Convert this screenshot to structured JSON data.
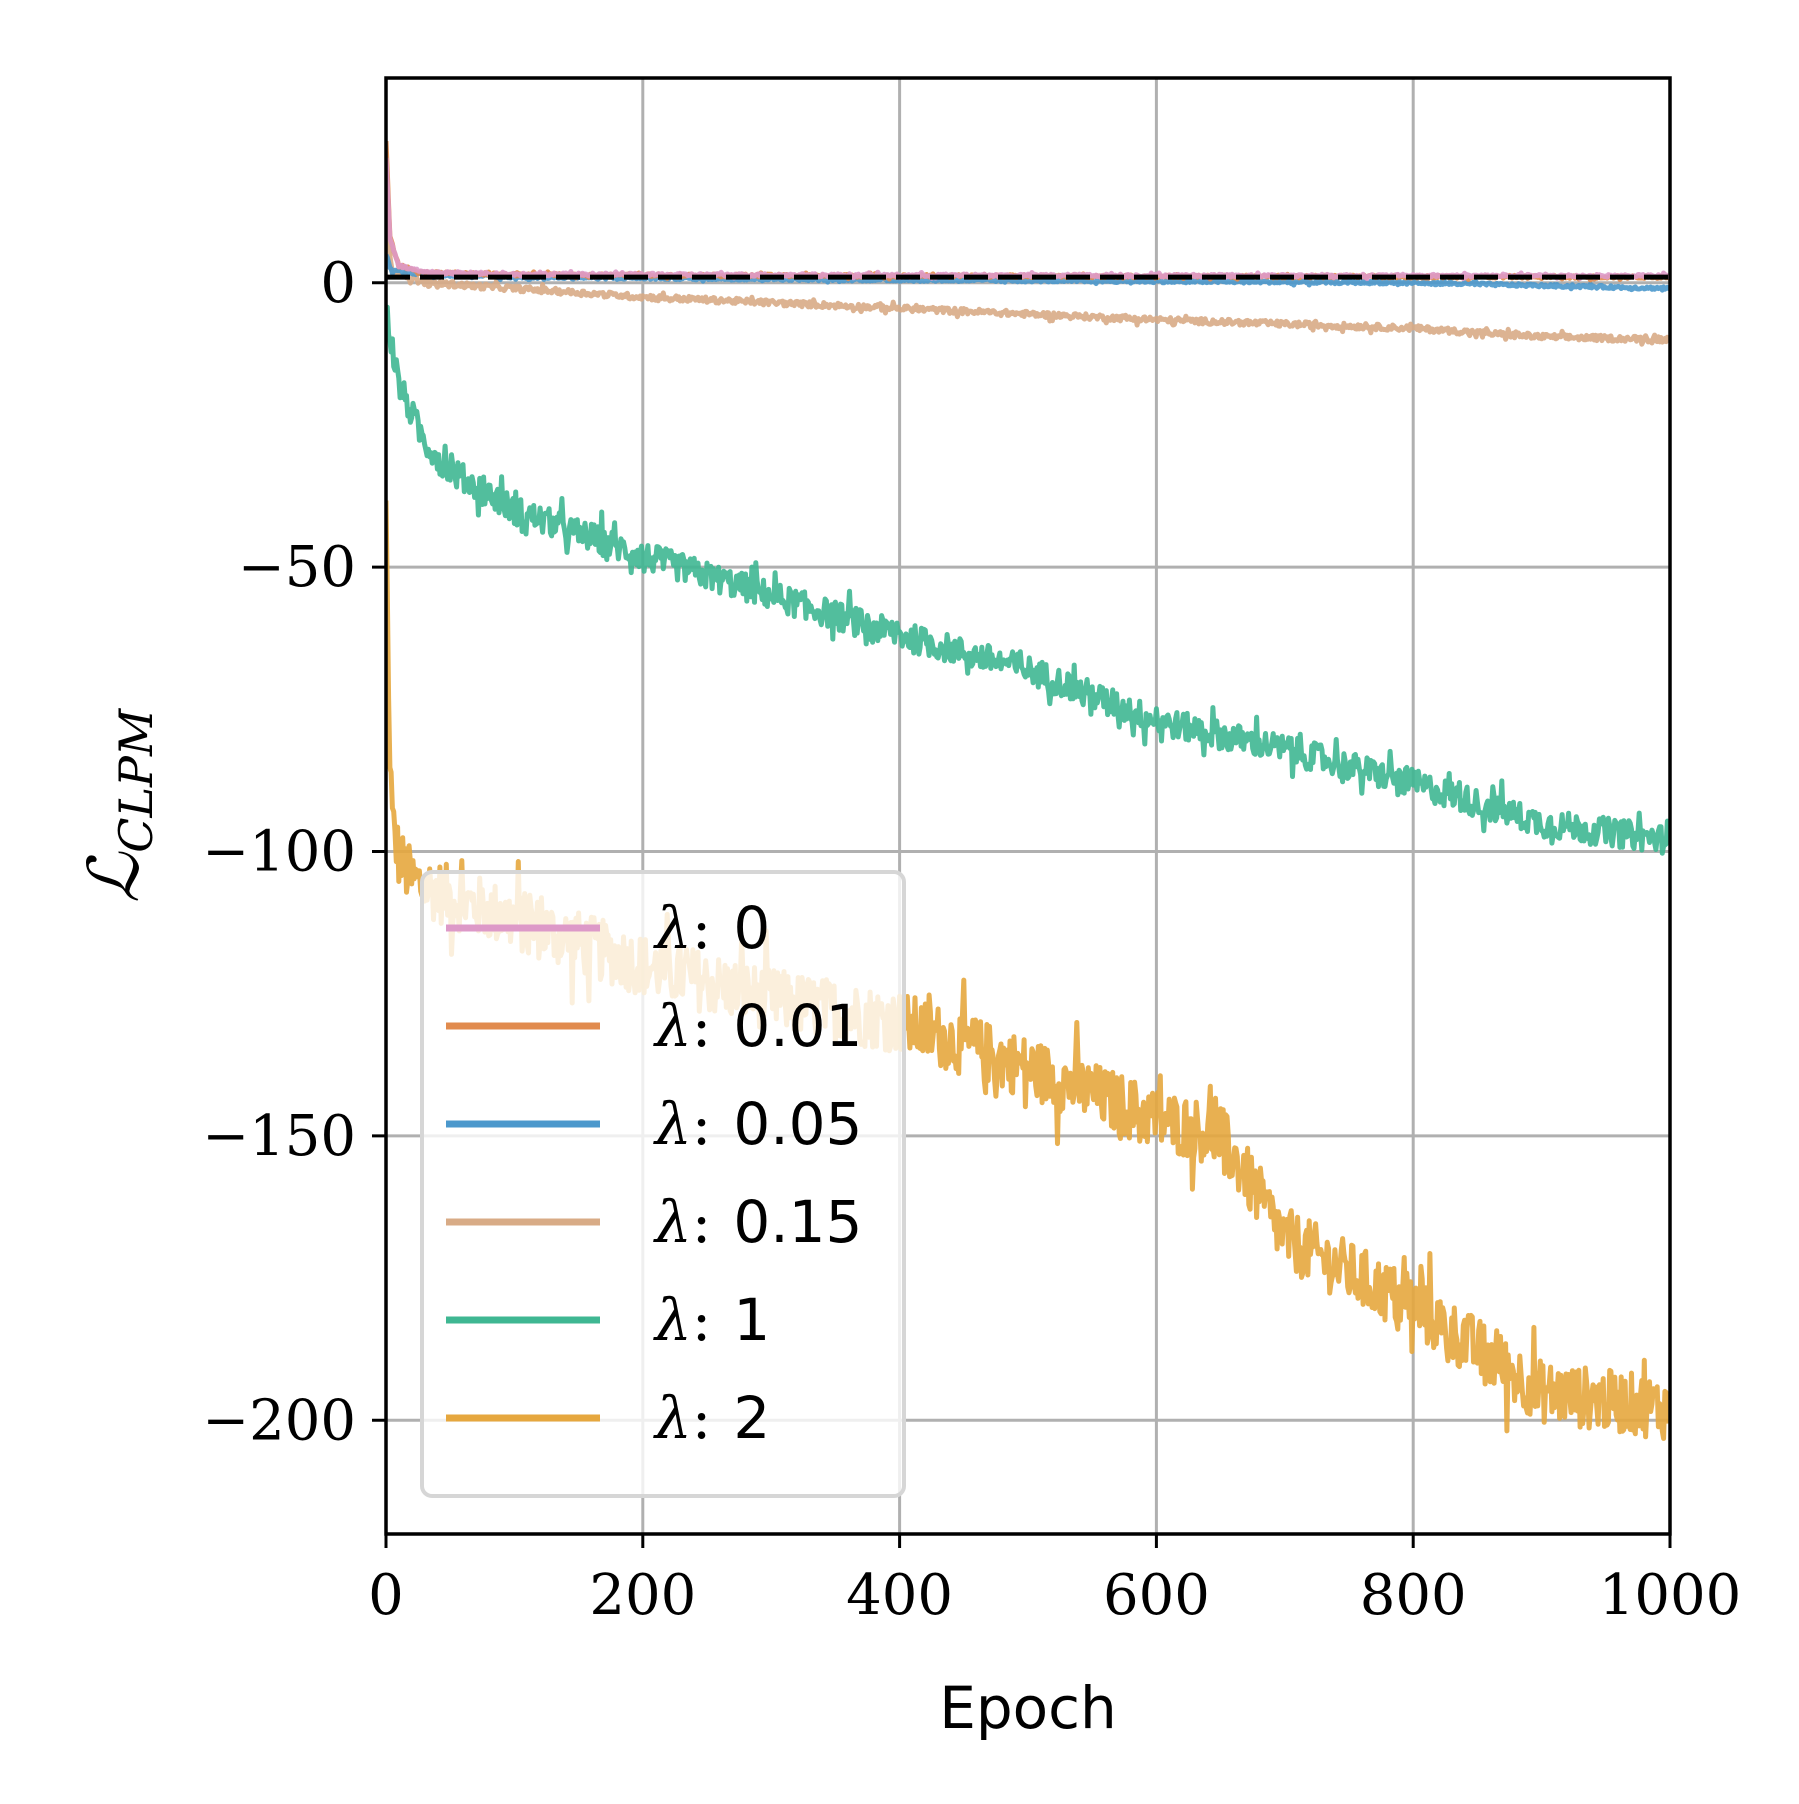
{
  "chart_data": {
    "type": "line",
    "title": "",
    "xlabel": "Epoch",
    "ylabel": "ℒ",
    "ylabel_sub": "CLPM",
    "xlim": [
      0,
      1000
    ],
    "ylim": [
      -220,
      36
    ],
    "xticks": [
      0,
      200,
      400,
      600,
      800,
      1000
    ],
    "xtick_labels": [
      "0",
      "200",
      "400",
      "600",
      "800",
      "1000"
    ],
    "yticks": [
      0,
      -50,
      -100,
      -150,
      -200
    ],
    "ytick_labels": [
      "0",
      "−50",
      "−100",
      "−150",
      "−200"
    ],
    "grid": true,
    "legend_position": "lower-left",
    "reference_line": {
      "y": 1,
      "style": "dashed",
      "color": "#000000"
    },
    "series": [
      {
        "name": "λ",
        "value_label": "0",
        "color": "#dd99c8",
        "noise": 0.25,
        "x": [
          0,
          3,
          10,
          30,
          100,
          400,
          1000
        ],
        "y": [
          22,
          8,
          3,
          1.8,
          1.5,
          1.3,
          1.2
        ]
      },
      {
        "name": "λ",
        "value_label": "0.01",
        "color": "#e18b4e",
        "noise": 0.25,
        "x": [
          0,
          3,
          10,
          30,
          100,
          400,
          1000
        ],
        "y": [
          25,
          8,
          3,
          1.8,
          1.4,
          1.2,
          1.0
        ]
      },
      {
        "name": "λ",
        "value_label": "0.05",
        "color": "#4b98cc",
        "noise": 0.25,
        "x": [
          0,
          5,
          30,
          100,
          400,
          800,
          1000
        ],
        "y": [
          5,
          2,
          1.5,
          1.0,
          0.5,
          0,
          -1
        ]
      },
      {
        "name": "λ",
        "value_label": "0.15",
        "color": "#d8ab86",
        "noise": 0.5,
        "x": [
          0,
          5,
          30,
          100,
          200,
          400,
          600,
          800,
          900,
          1000
        ],
        "y": [
          10,
          2,
          0,
          -1,
          -2.5,
          -4.5,
          -6.5,
          -8,
          -9.5,
          -10
        ]
      },
      {
        "name": "λ",
        "value_label": "1",
        "color": "#3fb792",
        "noise": 2.5,
        "x": [
          0,
          10,
          30,
          50,
          100,
          200,
          300,
          400,
          500,
          600,
          700,
          800,
          900,
          1000
        ],
        "y": [
          -5,
          -18,
          -28,
          -33,
          -40,
          -48,
          -55,
          -62,
          -68,
          -77,
          -82,
          -88,
          -95,
          -98
        ]
      },
      {
        "name": "λ",
        "value_label": "2",
        "color": "#e6a73e",
        "noise": 5.5,
        "x": [
          0,
          2,
          5,
          10,
          20,
          50,
          100,
          200,
          300,
          400,
          500,
          600,
          650,
          700,
          800,
          900,
          1000
        ],
        "y": [
          -40,
          -75,
          -95,
          -101,
          -105,
          -108,
          -112,
          -120,
          -126,
          -130,
          -138,
          -147,
          -150,
          -168,
          -180,
          -195,
          -198
        ]
      }
    ]
  }
}
